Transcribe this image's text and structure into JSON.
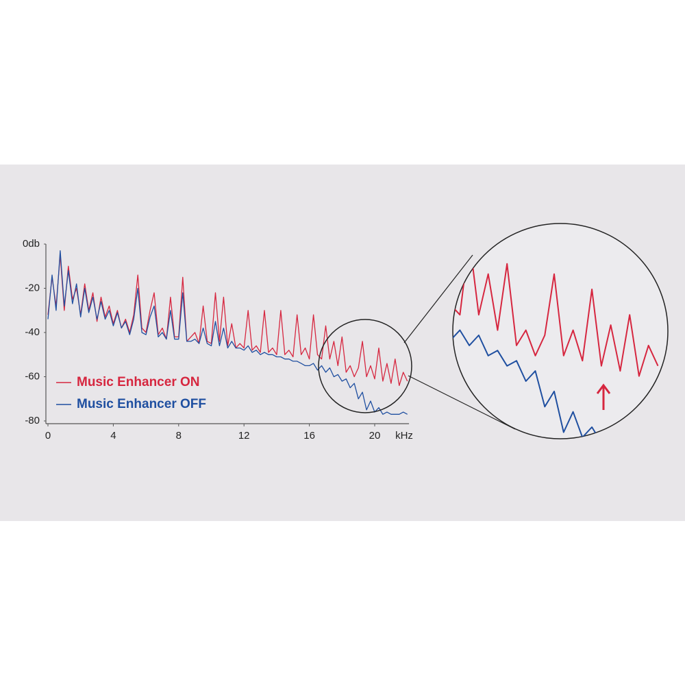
{
  "chart_data": {
    "type": "line",
    "x_label": "kHz",
    "xlim": [
      0,
      22.1
    ],
    "xticks": [
      0,
      4,
      8,
      12,
      16,
      20
    ],
    "ylim": [
      -80,
      0
    ],
    "yticks": [
      {
        "value": 0,
        "label": "0db"
      },
      -20,
      -40,
      -60,
      -80
    ],
    "x": [
      0,
      0.25,
      0.5,
      0.75,
      1,
      1.25,
      1.5,
      1.75,
      2,
      2.25,
      2.5,
      2.75,
      3,
      3.25,
      3.5,
      3.75,
      4,
      4.25,
      4.5,
      4.75,
      5,
      5.25,
      5.5,
      5.75,
      6,
      6.25,
      6.5,
      6.75,
      7,
      7.25,
      7.5,
      7.75,
      8,
      8.25,
      8.5,
      8.75,
      9,
      9.25,
      9.5,
      9.75,
      10,
      10.25,
      10.5,
      10.75,
      11,
      11.25,
      11.5,
      11.75,
      12,
      12.25,
      12.5,
      12.75,
      13,
      13.25,
      13.5,
      13.75,
      14,
      14.25,
      14.5,
      14.75,
      15,
      15.25,
      15.5,
      15.75,
      16,
      16.25,
      16.5,
      16.75,
      17,
      17.25,
      17.5,
      17.75,
      18,
      18.25,
      18.5,
      18.75,
      19,
      19.25,
      19.5,
      19.75,
      20,
      20.25,
      20.5,
      20.75,
      21,
      21.25,
      21.5,
      21.75,
      22
    ],
    "series": [
      {
        "name": "Music Enhancer ON",
        "color": "#d6263f",
        "values": [
          -32,
          -15,
          -28,
          -5,
          -30,
          -10,
          -25,
          -20,
          -32,
          -18,
          -30,
          -22,
          -35,
          -24,
          -33,
          -28,
          -36,
          -30,
          -38,
          -34,
          -40,
          -32,
          -14,
          -38,
          -40,
          -30,
          -22,
          -41,
          -38,
          -43,
          -24,
          -42,
          -42,
          -15,
          -44,
          -42,
          -40,
          -45,
          -28,
          -44,
          -45,
          -22,
          -44,
          -24,
          -46,
          -36,
          -47,
          -45,
          -47,
          -30,
          -48,
          -46,
          -49,
          -30,
          -49,
          -47,
          -50,
          -30,
          -50,
          -48,
          -51,
          -32,
          -50,
          -47,
          -52,
          -32,
          -50,
          -52,
          -37,
          -52,
          -44,
          -55,
          -42,
          -58,
          -55,
          -60,
          -56,
          -44,
          -60,
          -55,
          -61,
          -47,
          -62,
          -54,
          -63,
          -52,
          -64,
          -58,
          -62
        ]
      },
      {
        "name": "Music Enhancer OFF",
        "color": "#1f4fa0",
        "values": [
          -34,
          -14,
          -30,
          -3,
          -28,
          -12,
          -27,
          -18,
          -33,
          -20,
          -31,
          -24,
          -34,
          -26,
          -34,
          -30,
          -37,
          -31,
          -38,
          -35,
          -41,
          -34,
          -20,
          -40,
          -41,
          -33,
          -28,
          -42,
          -40,
          -43,
          -30,
          -43,
          -43,
          -22,
          -44,
          -44,
          -43,
          -45,
          -38,
          -45,
          -46,
          -35,
          -46,
          -38,
          -47,
          -44,
          -47,
          -47,
          -48,
          -46,
          -49,
          -48,
          -50,
          -49,
          -50,
          -50,
          -51,
          -51,
          -52,
          -52,
          -53,
          -53,
          -54,
          -55,
          -55,
          -54,
          -57,
          -55,
          -58,
          -56,
          -60,
          -59,
          -62,
          -61,
          -65,
          -63,
          -70,
          -67,
          -75,
          -71,
          -76,
          -74,
          -77,
          -76,
          -77,
          -77,
          -77,
          -76,
          -77
        ]
      }
    ]
  }
}
